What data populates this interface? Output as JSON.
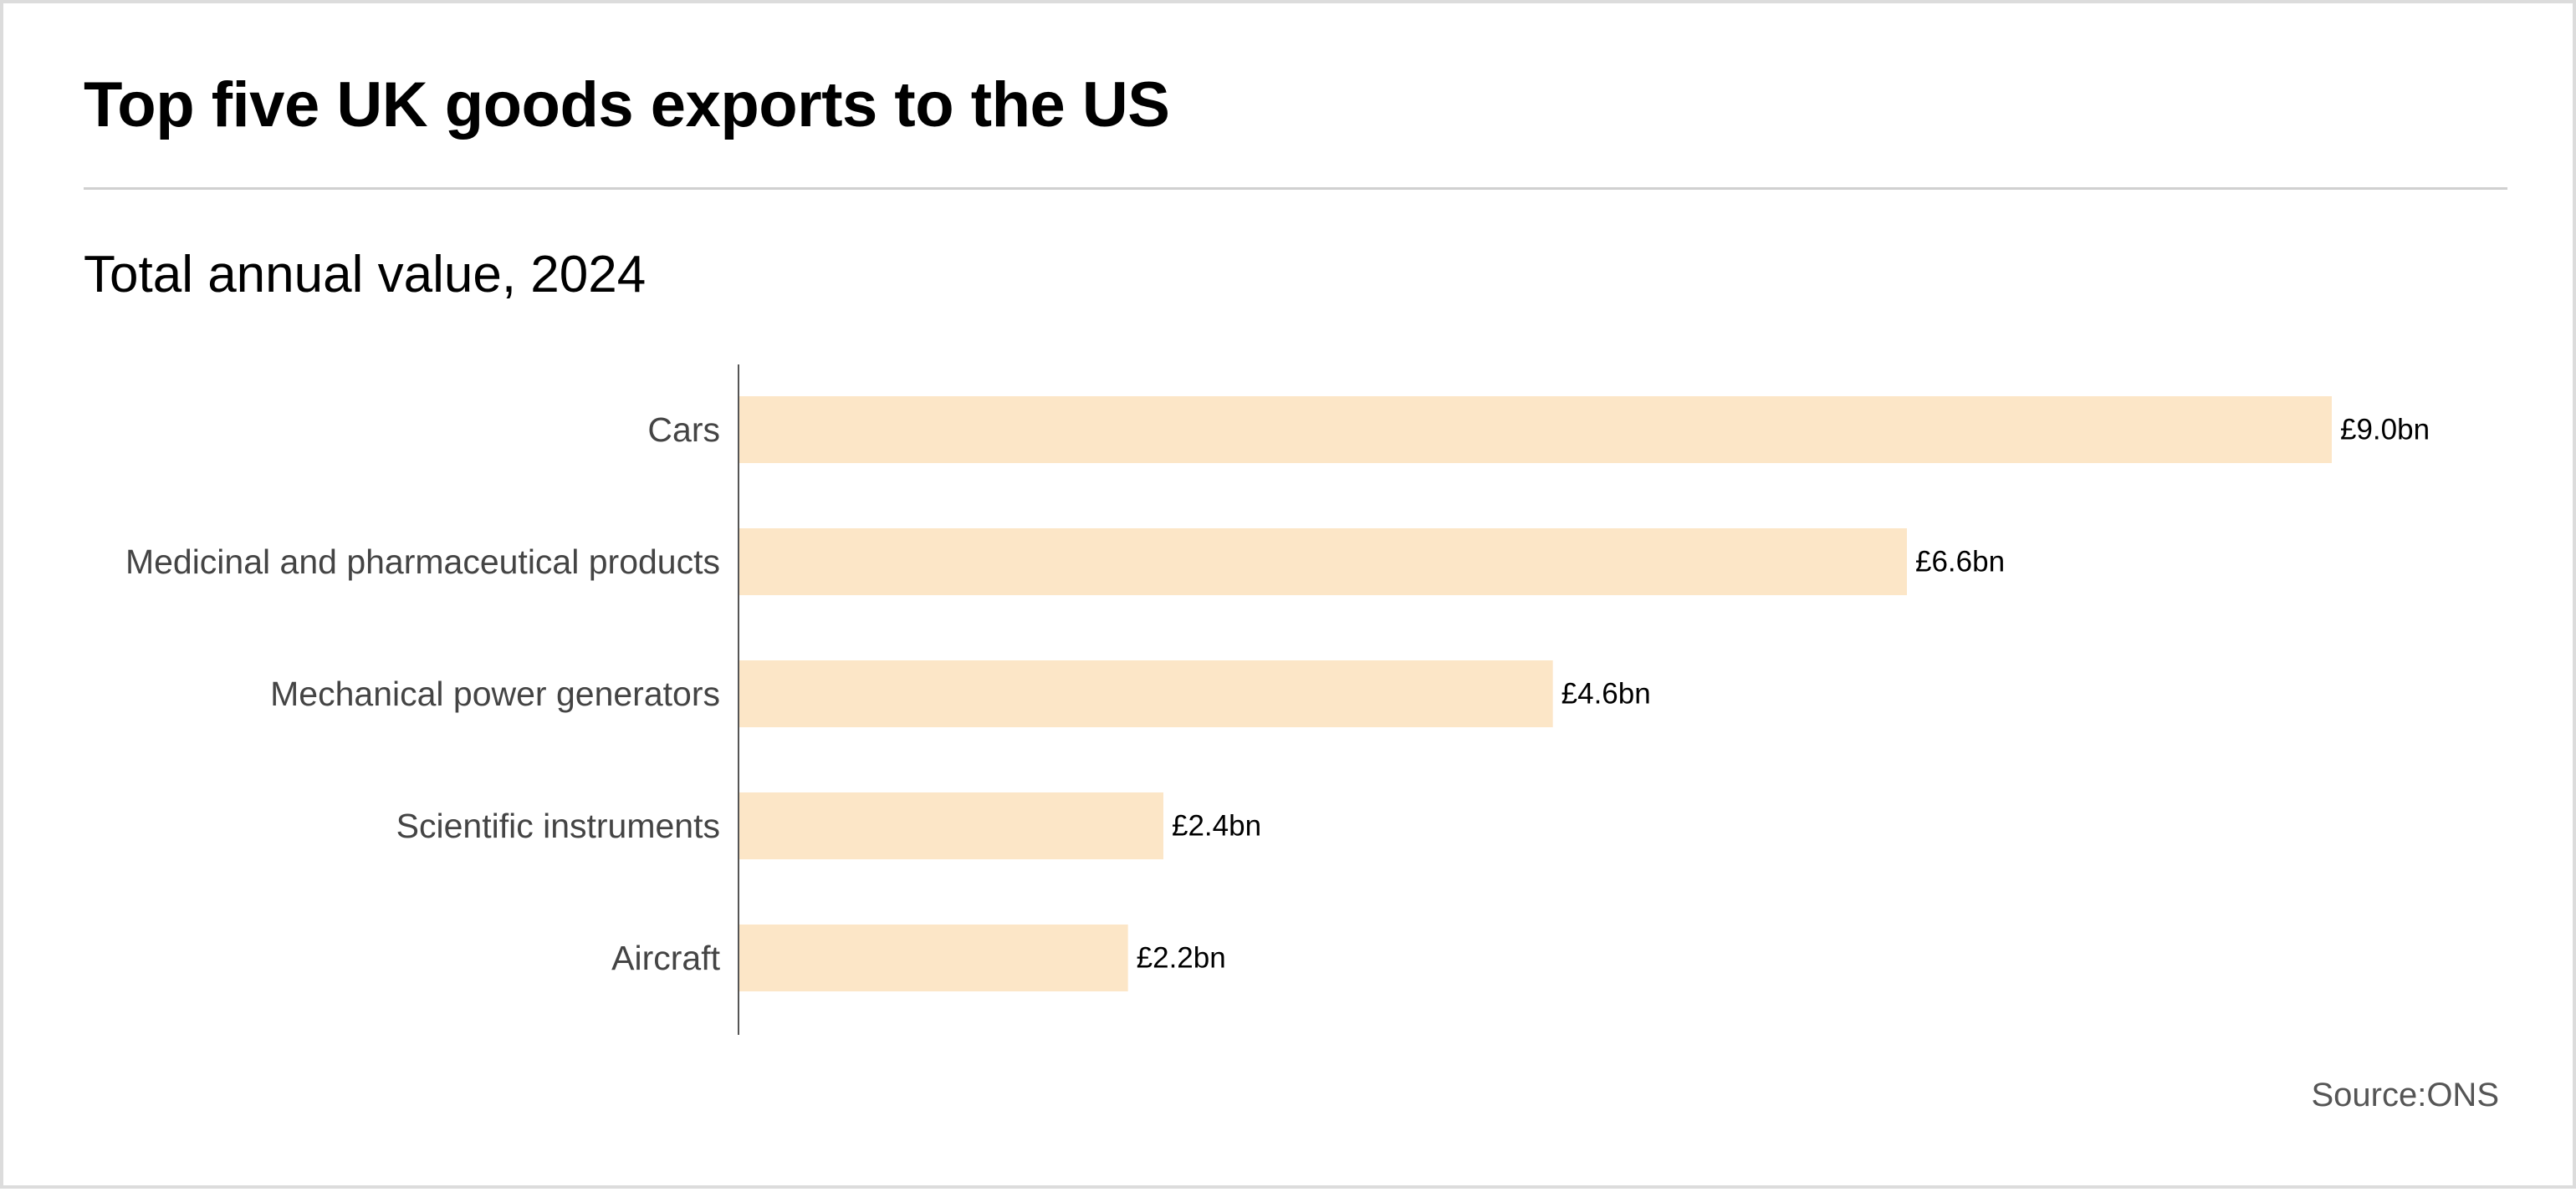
{
  "title": "Top five UK goods exports to the US",
  "subtitle": "Total annual value, 2024",
  "source": "Source:ONS",
  "colors": {
    "bar": "#fce6c7",
    "axis": "#555555",
    "category_text": "#444444",
    "value_text": "#000000"
  },
  "chart_data": {
    "type": "bar",
    "orientation": "horizontal",
    "title": "Top five UK goods exports to the US",
    "subtitle": "Total annual value, 2024",
    "categories": [
      "Cars",
      "Medicinal and pharmaceutical products",
      "Mechanical power generators",
      "Scientific instruments",
      "Aircraft"
    ],
    "values": [
      9.0,
      6.6,
      4.6,
      2.4,
      2.2
    ],
    "value_labels": [
      "£9.0bn",
      "£6.6bn",
      "£4.6bn",
      "£2.4bn",
      "£2.2bn"
    ],
    "xlim": [
      0,
      9.0
    ],
    "grid": false,
    "legend": "none"
  }
}
